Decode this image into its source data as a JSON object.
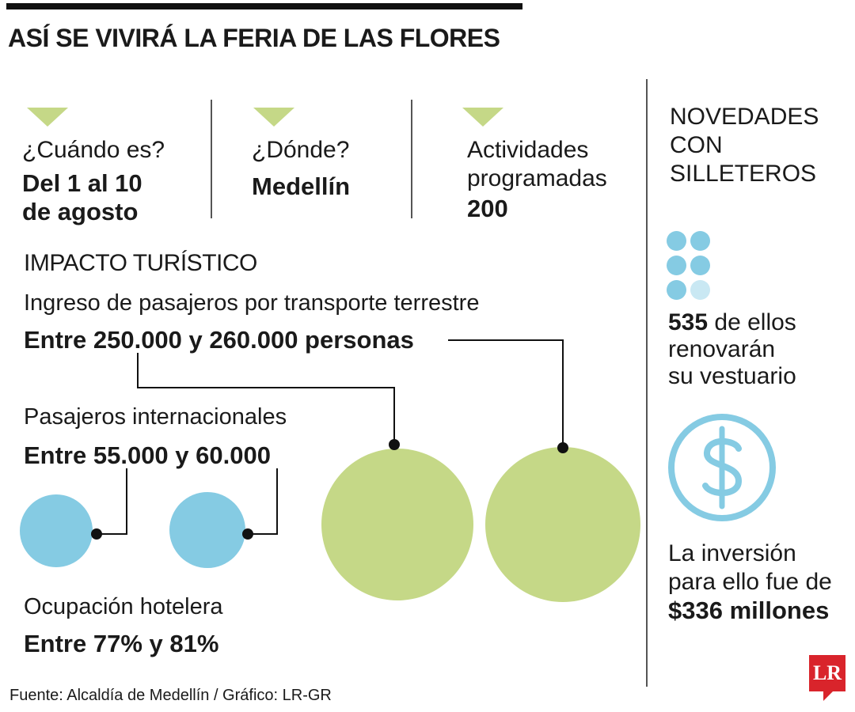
{
  "title": "ASÍ SE VIVIRÁ LA FERIA DE LAS FLORES",
  "colors": {
    "green": "#c5d887",
    "blue": "#85cbe3",
    "light_blue": "#c9e8f3",
    "dark": "#111111",
    "logo_red": "#d9242b"
  },
  "facts": [
    {
      "label": "¿Cuándo es?",
      "value_line1": "Del 1 al 10",
      "value_line2": "de agosto"
    },
    {
      "label": "¿Dónde?",
      "value": "Medellín"
    },
    {
      "label_line1": "Actividades",
      "label_line2": "programadas",
      "value": "200"
    }
  ],
  "impact": {
    "heading": "IMPACTO TURÍSTICO",
    "terrestre": {
      "label": "Ingreso de pasajeros por transporte terrestre",
      "value": "Entre 250.000 y 260.000 personas"
    },
    "internacionales": {
      "label": "Pasajeros internacionales",
      "value": "Entre 55.000 y 60.000"
    },
    "hotelera": {
      "label": "Ocupación hotelera",
      "value": "Entre 77% y 81%"
    }
  },
  "novedades": {
    "heading_lines": [
      "NOVEDADES",
      "CON",
      "SILLETEROS"
    ],
    "count_number": "535",
    "count_text": " de ellos",
    "count_line2": "renovarán",
    "count_line3": "su vestuario",
    "icon": "dollar-icon",
    "inversion_line1": "La inversión",
    "inversion_line2": "para ello fue de",
    "inversion_value": "$336 millones"
  },
  "source": "Fuente: Alcaldía de Medellín / Gráfico: LR-GR",
  "logo": "LR"
}
